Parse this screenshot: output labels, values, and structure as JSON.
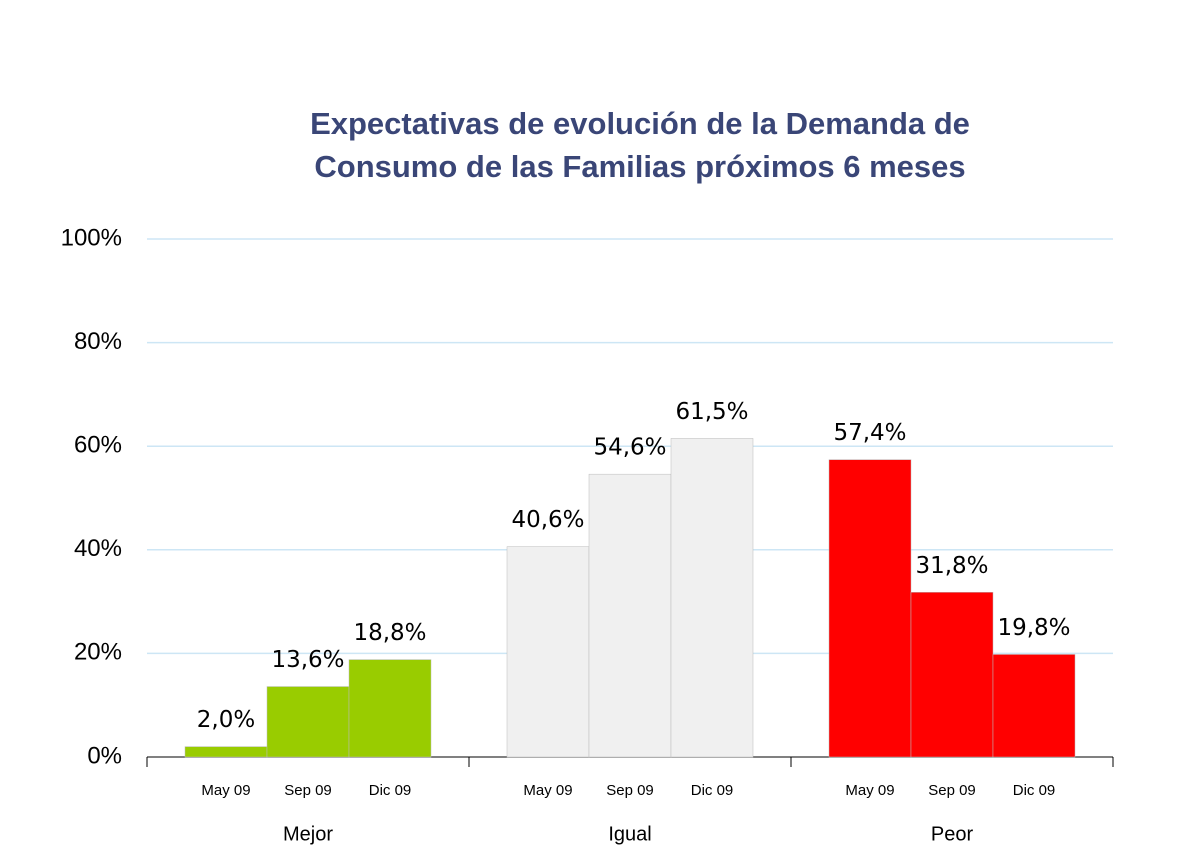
{
  "chart_data": {
    "type": "bar",
    "title": "Expectativas de evolución de la Demanda de Consumo de las Familias próximos 6 meses",
    "groups": [
      {
        "name": "Mejor",
        "color": "#99cc00",
        "categories": [
          "May 09",
          "Sep 09",
          "Dic  09"
        ],
        "values": [
          2.0,
          13.6,
          18.8
        ],
        "value_labels": [
          "2,0%",
          "13,6%",
          "18,8%"
        ]
      },
      {
        "name": "Igual",
        "color": "#f0f0f0",
        "categories": [
          "May 09",
          "Sep 09",
          "Dic  09"
        ],
        "values": [
          40.6,
          54.6,
          61.5
        ],
        "value_labels": [
          "40,6%",
          "54,6%",
          "61,5%"
        ]
      },
      {
        "name": "Peor",
        "color": "#ff0000",
        "categories": [
          "May 09",
          "Sep 09",
          "Dic  09"
        ],
        "values": [
          57.4,
          31.8,
          19.8
        ],
        "value_labels": [
          "57,4%",
          "31,8%",
          "19,8%"
        ]
      }
    ],
    "ylim": [
      0,
      100
    ],
    "yticks": [
      {
        "value": 0,
        "label": "0%"
      },
      {
        "value": 20,
        "label": "20%"
      },
      {
        "value": 40,
        "label": "40%"
      },
      {
        "value": 60,
        "label": "60%"
      },
      {
        "value": 80,
        "label": "80%"
      },
      {
        "value": 100,
        "label": "100%"
      }
    ],
    "grid": true
  }
}
